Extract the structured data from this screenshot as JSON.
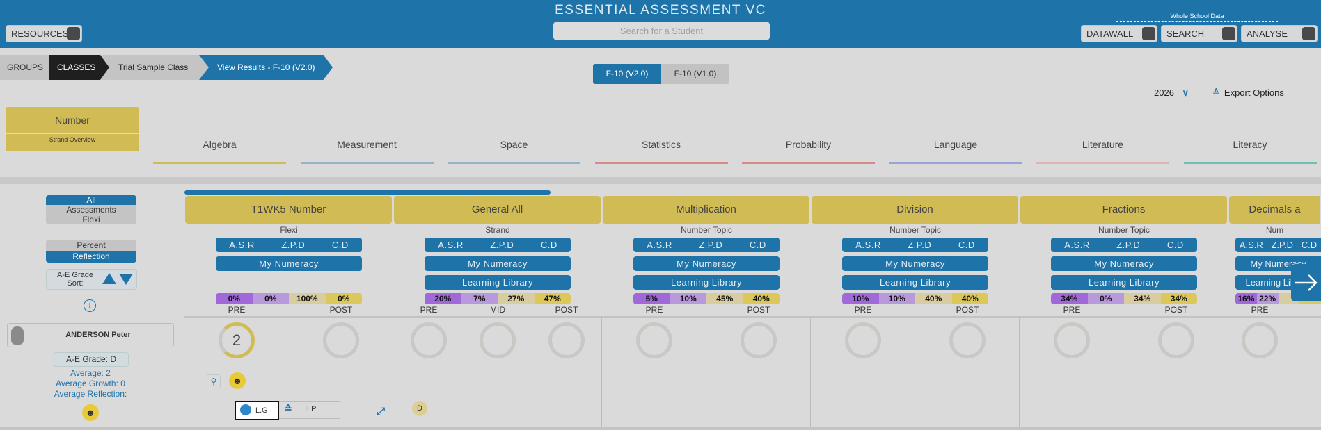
{
  "header": {
    "title": "ESSENTIAL ASSESSMENT VC",
    "search_placeholder": "Search for a Student",
    "resources": "RESOURCES",
    "whole_school": "Whole School Data",
    "datawall": "DATAWALL",
    "search": "SEARCH",
    "analyse": "ANALYSE"
  },
  "breadcrumb": [
    "GROUPS",
    "CLASSES",
    "Trial Sample Class",
    "View Results - F-10 (V2.0)"
  ],
  "versions": [
    "F-10 (V2.0)",
    "F-10 (V1.0)"
  ],
  "year": "2026",
  "export": "Export Options",
  "strand": {
    "name": "Number",
    "overview": "Strand Overview"
  },
  "tabs": [
    {
      "label": "Algebra",
      "color": "#d1bb55"
    },
    {
      "label": "Measurement",
      "color": "#93b3c8"
    },
    {
      "label": "Space",
      "color": "#93b3c8"
    },
    {
      "label": "Statistics",
      "color": "#d88a86"
    },
    {
      "label": "Probability",
      "color": "#d88a86"
    },
    {
      "label": "Language",
      "color": "#97a4db"
    },
    {
      "label": "Literature",
      "color": "#ddb4b0"
    },
    {
      "label": "Literacy",
      "color": "#6dbfae"
    }
  ],
  "left": {
    "all": "All",
    "assessments": "Assessments",
    "flexi": "Flexi",
    "percent": "Percent",
    "reflection": "Reflection",
    "sort": "A-E Grade Sort:",
    "student": "ANDERSON Peter",
    "grade": "A-E Grade: D",
    "average": "Average: 2",
    "growth": "Average Growth: 0",
    "avg_reflection": "Average Reflection:"
  },
  "buttons": {
    "asr": "A.S.R",
    "zpd": "Z.P.D",
    "cd": "C.D",
    "numeracy": "My Numeracy",
    "library": "Learning Library",
    "lg": "L.G",
    "ilp": "ILP"
  },
  "columns": [
    {
      "title": "T1WK5 Number",
      "type": "Flexi",
      "library": false,
      "pct": [
        "0%",
        "0%",
        "100%",
        "0%"
      ],
      "labels": [
        "PRE",
        "POST"
      ],
      "ring_value": "2"
    },
    {
      "title": "General All",
      "type": "Strand",
      "library": true,
      "pct": [
        "20%",
        "7%",
        "27%",
        "47%"
      ],
      "labels": [
        "PRE",
        "MID",
        "POST"
      ],
      "badge": "D"
    },
    {
      "title": "Multiplication",
      "type": "Number Topic",
      "library": true,
      "pct": [
        "5%",
        "10%",
        "45%",
        "40%"
      ],
      "labels": [
        "PRE",
        "POST"
      ]
    },
    {
      "title": "Division",
      "type": "Number Topic",
      "library": true,
      "pct": [
        "10%",
        "10%",
        "40%",
        "40%"
      ],
      "labels": [
        "PRE",
        "POST"
      ]
    },
    {
      "title": "Fractions",
      "type": "Number Topic",
      "library": true,
      "pct": [
        "34%",
        "0%",
        "34%",
        "34%"
      ],
      "labels": [
        "PRE",
        "POST"
      ]
    },
    {
      "title": "Decimals a",
      "type": "Num",
      "library": true,
      "pct": [
        "16%",
        "22%",
        "",
        ""
      ],
      "labels": [
        "PRE"
      ]
    }
  ],
  "colors": {
    "blue": "#1e73a8",
    "yellow": "#d1bb55",
    "pct": [
      "#a068d8",
      "#b899dc",
      "#d8cda0",
      "#dcc75a"
    ]
  }
}
